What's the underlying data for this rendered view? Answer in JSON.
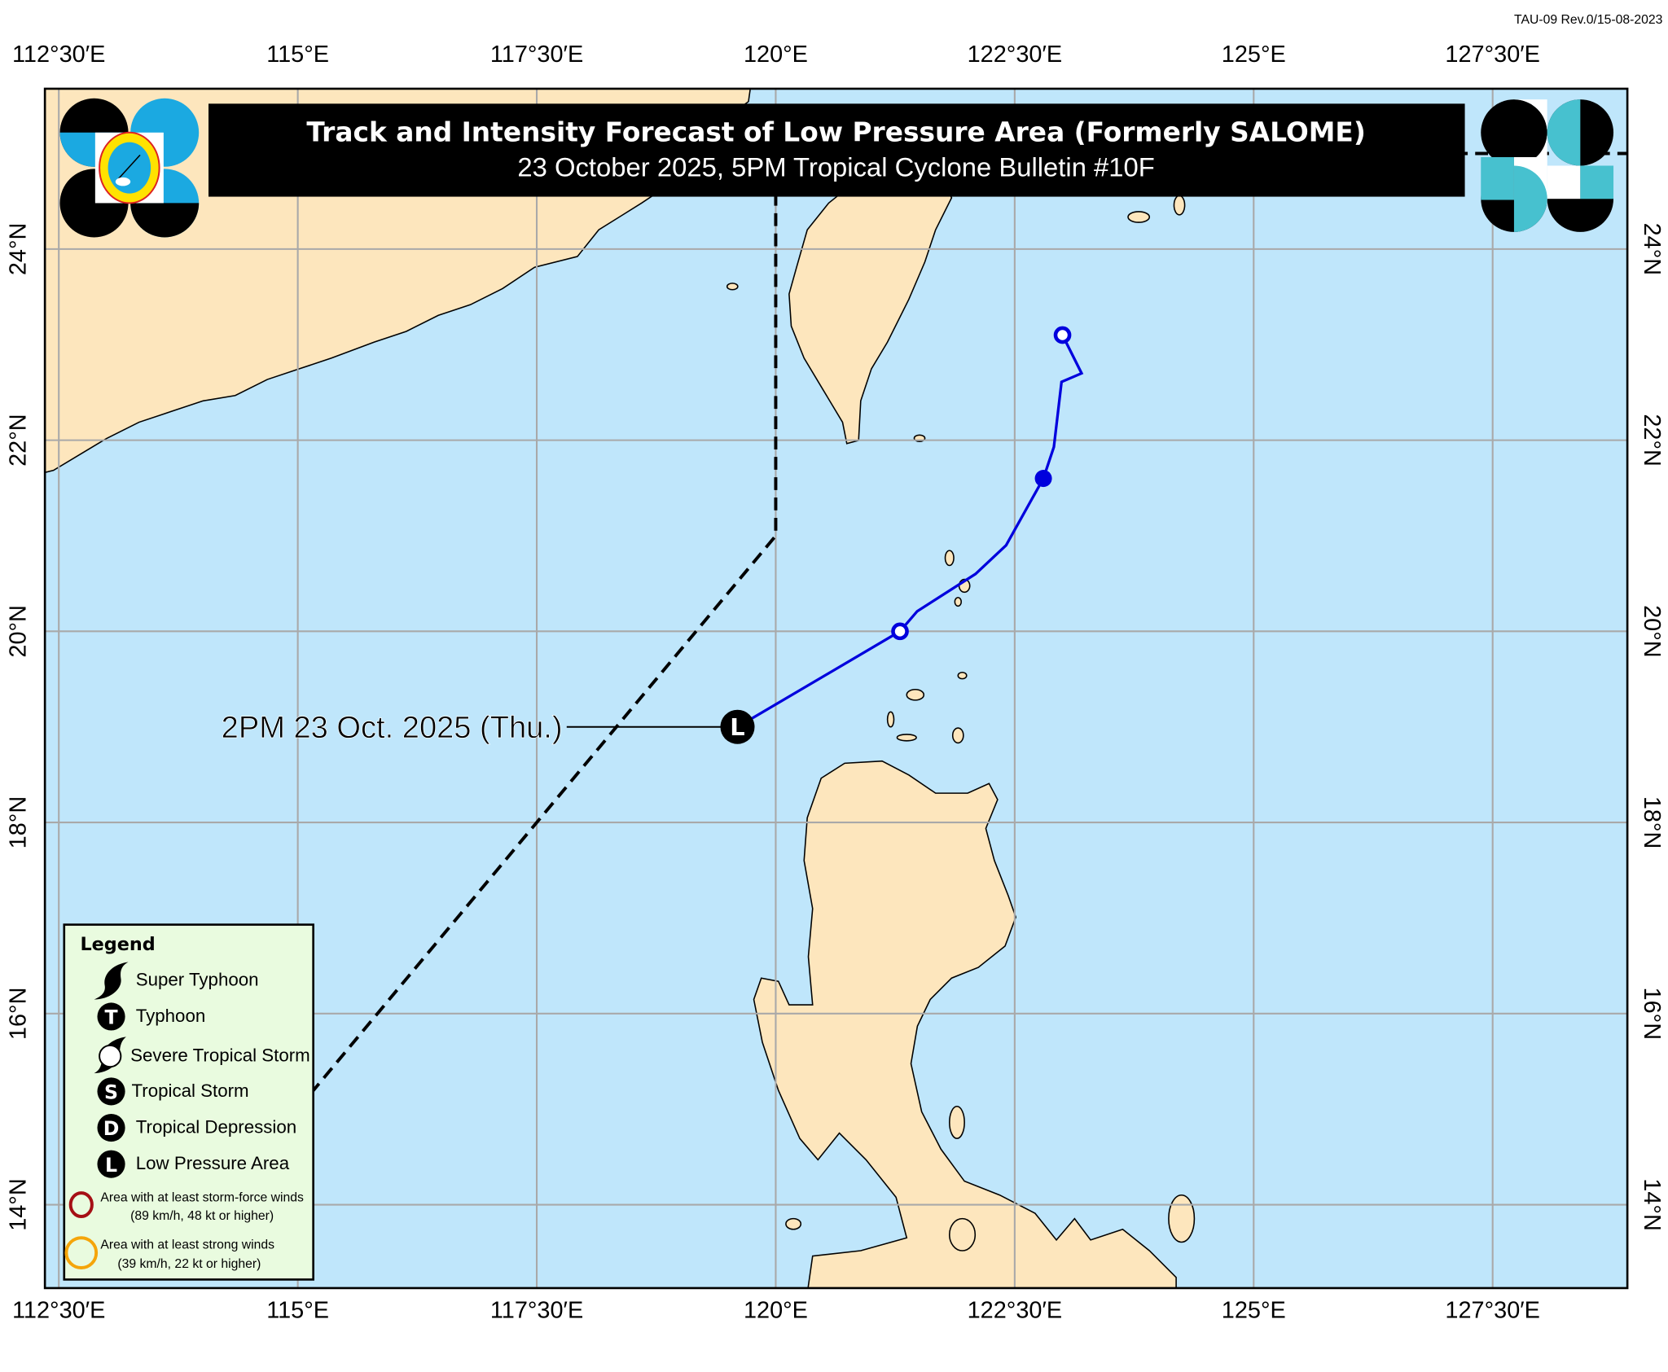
{
  "revision": "TAU-09 Rev.0/15-08-2023",
  "title": "Track and Intensity Forecast of Low Pressure Area (Formerly SALOME)",
  "subtitle": "23 October 2025, 5PM Tropical Cyclone Bulletin #10F",
  "longitude_labels": [
    "112°30′E",
    "115°E",
    "117°30′E",
    "120°E",
    "122°30′E",
    "125°E",
    "127°30′E"
  ],
  "longitude_values": [
    112.5,
    115,
    117.5,
    120,
    122.5,
    125,
    127.5
  ],
  "latitude_labels": [
    "24°N",
    "22°N",
    "20°N",
    "18°N",
    "16°N",
    "14°N"
  ],
  "latitude_values": [
    24,
    22,
    20,
    18,
    16,
    14
  ],
  "map_extent": {
    "lon": [
      112.35,
      128.9
    ],
    "lat": [
      13.13,
      25.68
    ]
  },
  "current_position": {
    "label": "2PM 23 Oct. 2025 (Thu.)",
    "lon": 119.6,
    "lat": 19.0,
    "category": "Low Pressure Area",
    "symbol": "L"
  },
  "forecast_track": [
    {
      "lon": 119.6,
      "lat": 19.0,
      "marker": "none"
    },
    {
      "lon": 121.3,
      "lat": 20.0,
      "marker": "open-circle"
    },
    {
      "lon": 121.48,
      "lat": 20.21,
      "marker": "none"
    },
    {
      "lon": 122.09,
      "lat": 20.6,
      "marker": "none"
    },
    {
      "lon": 122.41,
      "lat": 20.9,
      "marker": "none"
    },
    {
      "lon": 122.8,
      "lat": 21.6,
      "marker": "filled-circle"
    },
    {
      "lon": 122.91,
      "lat": 21.93,
      "marker": "none"
    },
    {
      "lon": 122.99,
      "lat": 22.61,
      "marker": "none"
    },
    {
      "lon": 123.2,
      "lat": 22.7,
      "marker": "none"
    },
    {
      "lon": 123.0,
      "lat": 23.1,
      "marker": "open-circle"
    }
  ],
  "par_boundary": [
    {
      "lon": 115,
      "lat": 15
    },
    {
      "lon": 120,
      "lat": 21
    },
    {
      "lon": 120,
      "lat": 25
    },
    {
      "lon": 135,
      "lat": 25
    }
  ],
  "legend": {
    "title": "Legend",
    "items": [
      {
        "icon": "super-typhoon-icon",
        "label": "Super Typhoon"
      },
      {
        "icon": "typhoon-icon",
        "symbol": "T",
        "label": "Typhoon"
      },
      {
        "icon": "severe-tropical-storm-icon",
        "label": "Severe Tropical Storm"
      },
      {
        "icon": "tropical-storm-icon",
        "symbol": "S",
        "label": "Tropical Storm"
      },
      {
        "icon": "tropical-depression-icon",
        "symbol": "D",
        "label": "Tropical Depression"
      },
      {
        "icon": "low-pressure-area-icon",
        "symbol": "L",
        "label": "Low Pressure Area"
      }
    ],
    "areas": [
      {
        "label": "Area with at least storm-force winds",
        "detail": "(89 km/h, 48 kt or higher)",
        "color": "#a50f15"
      },
      {
        "label": "Area with at least strong winds",
        "detail": "(39 km/h, 22 kt or higher)",
        "color": "#f5a50a"
      }
    ]
  },
  "colors": {
    "sea": "#bfe6fb",
    "land": "#fde6bd",
    "track": "#0000dd",
    "legend_bg": "#e9fbdf",
    "grid": "#a9a9a9"
  }
}
